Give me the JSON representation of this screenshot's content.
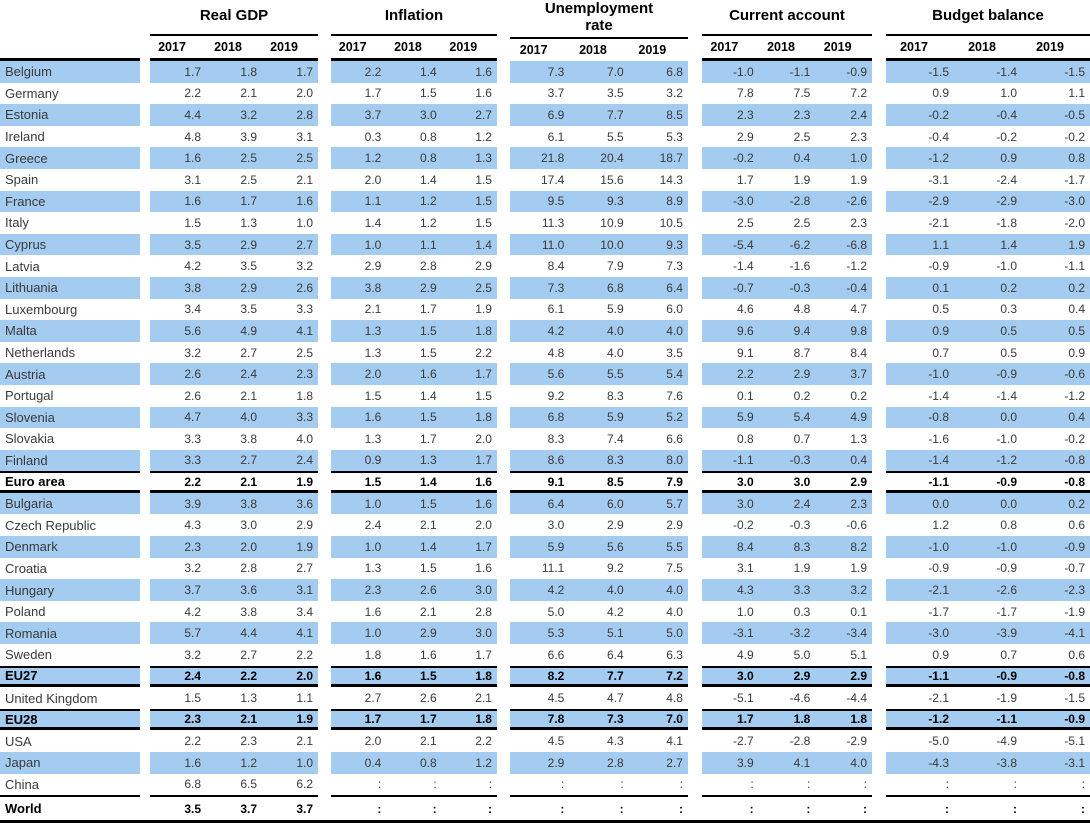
{
  "header": {
    "groups": [
      {
        "label": "Real GDP"
      },
      {
        "label": "Inflation"
      },
      {
        "label": "Unemployment rate"
      },
      {
        "label": "Current account"
      },
      {
        "label": "Budget balance"
      }
    ],
    "years": [
      "2017",
      "2018",
      "2019"
    ]
  },
  "colors": {
    "row_highlight": "#a4cbf0",
    "rule": "#000000"
  },
  "missing_value_symbol": ":",
  "rows": [
    {
      "name": "Belgium",
      "hl": true,
      "agg": false,
      "v": [
        [
          "1.7",
          "1.8",
          "1.7"
        ],
        [
          "2.2",
          "1.4",
          "1.6"
        ],
        [
          "7.3",
          "7.0",
          "6.8"
        ],
        [
          "-1.0",
          "-1.1",
          "-0.9"
        ],
        [
          "-1.5",
          "-1.4",
          "-1.5"
        ]
      ]
    },
    {
      "name": "Germany",
      "hl": false,
      "agg": false,
      "v": [
        [
          "2.2",
          "2.1",
          "2.0"
        ],
        [
          "1.7",
          "1.5",
          "1.6"
        ],
        [
          "3.7",
          "3.5",
          "3.2"
        ],
        [
          "7.8",
          "7.5",
          "7.2"
        ],
        [
          "0.9",
          "1.0",
          "1.1"
        ]
      ]
    },
    {
      "name": "Estonia",
      "hl": true,
      "agg": false,
      "v": [
        [
          "4.4",
          "3.2",
          "2.8"
        ],
        [
          "3.7",
          "3.0",
          "2.7"
        ],
        [
          "6.9",
          "7.7",
          "8.5"
        ],
        [
          "2.3",
          "2.3",
          "2.4"
        ],
        [
          "-0.2",
          "-0.4",
          "-0.5"
        ]
      ]
    },
    {
      "name": "Ireland",
      "hl": false,
      "agg": false,
      "v": [
        [
          "4.8",
          "3.9",
          "3.1"
        ],
        [
          "0.3",
          "0.8",
          "1.2"
        ],
        [
          "6.1",
          "5.5",
          "5.3"
        ],
        [
          "2.9",
          "2.5",
          "2.3"
        ],
        [
          "-0.4",
          "-0.2",
          "-0.2"
        ]
      ]
    },
    {
      "name": "Greece",
      "hl": true,
      "agg": false,
      "v": [
        [
          "1.6",
          "2.5",
          "2.5"
        ],
        [
          "1.2",
          "0.8",
          "1.3"
        ],
        [
          "21.8",
          "20.4",
          "18.7"
        ],
        [
          "-0.2",
          "0.4",
          "1.0"
        ],
        [
          "-1.2",
          "0.9",
          "0.8"
        ]
      ]
    },
    {
      "name": "Spain",
      "hl": false,
      "agg": false,
      "v": [
        [
          "3.1",
          "2.5",
          "2.1"
        ],
        [
          "2.0",
          "1.4",
          "1.5"
        ],
        [
          "17.4",
          "15.6",
          "14.3"
        ],
        [
          "1.7",
          "1.9",
          "1.9"
        ],
        [
          "-3.1",
          "-2.4",
          "-1.7"
        ]
      ]
    },
    {
      "name": "France",
      "hl": true,
      "agg": false,
      "v": [
        [
          "1.6",
          "1.7",
          "1.6"
        ],
        [
          "1.1",
          "1.2",
          "1.5"
        ],
        [
          "9.5",
          "9.3",
          "8.9"
        ],
        [
          "-3.0",
          "-2.8",
          "-2.6"
        ],
        [
          "-2.9",
          "-2.9",
          "-3.0"
        ]
      ]
    },
    {
      "name": "Italy",
      "hl": false,
      "agg": false,
      "v": [
        [
          "1.5",
          "1.3",
          "1.0"
        ],
        [
          "1.4",
          "1.2",
          "1.5"
        ],
        [
          "11.3",
          "10.9",
          "10.5"
        ],
        [
          "2.5",
          "2.5",
          "2.3"
        ],
        [
          "-2.1",
          "-1.8",
          "-2.0"
        ]
      ]
    },
    {
      "name": "Cyprus",
      "hl": true,
      "agg": false,
      "v": [
        [
          "3.5",
          "2.9",
          "2.7"
        ],
        [
          "1.0",
          "1.1",
          "1.4"
        ],
        [
          "11.0",
          "10.0",
          "9.3"
        ],
        [
          "-5.4",
          "-6.2",
          "-6.8"
        ],
        [
          "1.1",
          "1.4",
          "1.9"
        ]
      ]
    },
    {
      "name": "Latvia",
      "hl": false,
      "agg": false,
      "v": [
        [
          "4.2",
          "3.5",
          "3.2"
        ],
        [
          "2.9",
          "2.8",
          "2.9"
        ],
        [
          "8.4",
          "7.9",
          "7.3"
        ],
        [
          "-1.4",
          "-1.6",
          "-1.2"
        ],
        [
          "-0.9",
          "-1.0",
          "-1.1"
        ]
      ]
    },
    {
      "name": "Lithuania",
      "hl": true,
      "agg": false,
      "v": [
        [
          "3.8",
          "2.9",
          "2.6"
        ],
        [
          "3.8",
          "2.9",
          "2.5"
        ],
        [
          "7.3",
          "6.8",
          "6.4"
        ],
        [
          "-0.7",
          "-0.3",
          "-0.4"
        ],
        [
          "0.1",
          "0.2",
          "0.2"
        ]
      ]
    },
    {
      "name": "Luxembourg",
      "hl": false,
      "agg": false,
      "v": [
        [
          "3.4",
          "3.5",
          "3.3"
        ],
        [
          "2.1",
          "1.7",
          "1.9"
        ],
        [
          "6.1",
          "5.9",
          "6.0"
        ],
        [
          "4.6",
          "4.8",
          "4.7"
        ],
        [
          "0.5",
          "0.3",
          "0.4"
        ]
      ]
    },
    {
      "name": "Malta",
      "hl": true,
      "agg": false,
      "v": [
        [
          "5.6",
          "4.9",
          "4.1"
        ],
        [
          "1.3",
          "1.5",
          "1.8"
        ],
        [
          "4.2",
          "4.0",
          "4.0"
        ],
        [
          "9.6",
          "9.4",
          "9.8"
        ],
        [
          "0.9",
          "0.5",
          "0.5"
        ]
      ]
    },
    {
      "name": "Netherlands",
      "hl": false,
      "agg": false,
      "v": [
        [
          "3.2",
          "2.7",
          "2.5"
        ],
        [
          "1.3",
          "1.5",
          "2.2"
        ],
        [
          "4.8",
          "4.0",
          "3.5"
        ],
        [
          "9.1",
          "8.7",
          "8.4"
        ],
        [
          "0.7",
          "0.5",
          "0.9"
        ]
      ]
    },
    {
      "name": "Austria",
      "hl": true,
      "agg": false,
      "v": [
        [
          "2.6",
          "2.4",
          "2.3"
        ],
        [
          "2.0",
          "1.6",
          "1.7"
        ],
        [
          "5.6",
          "5.5",
          "5.4"
        ],
        [
          "2.2",
          "2.9",
          "3.7"
        ],
        [
          "-1.0",
          "-0.9",
          "-0.6"
        ]
      ]
    },
    {
      "name": "Portugal",
      "hl": false,
      "agg": false,
      "v": [
        [
          "2.6",
          "2.1",
          "1.8"
        ],
        [
          "1.5",
          "1.4",
          "1.5"
        ],
        [
          "9.2",
          "8.3",
          "7.6"
        ],
        [
          "0.1",
          "0.2",
          "0.2"
        ],
        [
          "-1.4",
          "-1.4",
          "-1.2"
        ]
      ]
    },
    {
      "name": "Slovenia",
      "hl": true,
      "agg": false,
      "v": [
        [
          "4.7",
          "4.0",
          "3.3"
        ],
        [
          "1.6",
          "1.5",
          "1.8"
        ],
        [
          "6.8",
          "5.9",
          "5.2"
        ],
        [
          "5.9",
          "5.4",
          "4.9"
        ],
        [
          "-0.8",
          "0.0",
          "0.4"
        ]
      ]
    },
    {
      "name": "Slovakia",
      "hl": false,
      "agg": false,
      "v": [
        [
          "3.3",
          "3.8",
          "4.0"
        ],
        [
          "1.3",
          "1.7",
          "2.0"
        ],
        [
          "8.3",
          "7.4",
          "6.6"
        ],
        [
          "0.8",
          "0.7",
          "1.3"
        ],
        [
          "-1.6",
          "-1.0",
          "-0.2"
        ]
      ]
    },
    {
      "name": "Finland",
      "hl": true,
      "agg": false,
      "v": [
        [
          "3.3",
          "2.7",
          "2.4"
        ],
        [
          "0.9",
          "1.3",
          "1.7"
        ],
        [
          "8.6",
          "8.3",
          "8.0"
        ],
        [
          "-1.1",
          "-0.3",
          "0.4"
        ],
        [
          "-1.4",
          "-1.2",
          "-0.8"
        ]
      ]
    },
    {
      "name": "Euro area",
      "hl": false,
      "agg": true,
      "v": [
        [
          "2.2",
          "2.1",
          "1.9"
        ],
        [
          "1.5",
          "1.4",
          "1.6"
        ],
        [
          "9.1",
          "8.5",
          "7.9"
        ],
        [
          "3.0",
          "3.0",
          "2.9"
        ],
        [
          "-1.1",
          "-0.9",
          "-0.8"
        ]
      ]
    },
    {
      "name": "Bulgaria",
      "hl": true,
      "agg": false,
      "v": [
        [
          "3.9",
          "3.8",
          "3.6"
        ],
        [
          "1.0",
          "1.5",
          "1.6"
        ],
        [
          "6.4",
          "6.0",
          "5.7"
        ],
        [
          "3.0",
          "2.4",
          "2.3"
        ],
        [
          "0.0",
          "0.0",
          "0.2"
        ]
      ]
    },
    {
      "name": "Czech Republic",
      "hl": false,
      "agg": false,
      "v": [
        [
          "4.3",
          "3.0",
          "2.9"
        ],
        [
          "2.4",
          "2.1",
          "2.0"
        ],
        [
          "3.0",
          "2.9",
          "2.9"
        ],
        [
          "-0.2",
          "-0.3",
          "-0.6"
        ],
        [
          "1.2",
          "0.8",
          "0.6"
        ]
      ]
    },
    {
      "name": "Denmark",
      "hl": true,
      "agg": false,
      "v": [
        [
          "2.3",
          "2.0",
          "1.9"
        ],
        [
          "1.0",
          "1.4",
          "1.7"
        ],
        [
          "5.9",
          "5.6",
          "5.5"
        ],
        [
          "8.4",
          "8.3",
          "8.2"
        ],
        [
          "-1.0",
          "-1.0",
          "-0.9"
        ]
      ]
    },
    {
      "name": "Croatia",
      "hl": false,
      "agg": false,
      "v": [
        [
          "3.2",
          "2.8",
          "2.7"
        ],
        [
          "1.3",
          "1.5",
          "1.6"
        ],
        [
          "11.1",
          "9.2",
          "7.5"
        ],
        [
          "3.1",
          "1.9",
          "1.9"
        ],
        [
          "-0.9",
          "-0.9",
          "-0.7"
        ]
      ]
    },
    {
      "name": "Hungary",
      "hl": true,
      "agg": false,
      "v": [
        [
          "3.7",
          "3.6",
          "3.1"
        ],
        [
          "2.3",
          "2.6",
          "3.0"
        ],
        [
          "4.2",
          "4.0",
          "4.0"
        ],
        [
          "4.3",
          "3.3",
          "3.2"
        ],
        [
          "-2.1",
          "-2.6",
          "-2.3"
        ]
      ]
    },
    {
      "name": "Poland",
      "hl": false,
      "agg": false,
      "v": [
        [
          "4.2",
          "3.8",
          "3.4"
        ],
        [
          "1.6",
          "2.1",
          "2.8"
        ],
        [
          "5.0",
          "4.2",
          "4.0"
        ],
        [
          "1.0",
          "0.3",
          "0.1"
        ],
        [
          "-1.7",
          "-1.7",
          "-1.9"
        ]
      ]
    },
    {
      "name": "Romania",
      "hl": true,
      "agg": false,
      "v": [
        [
          "5.7",
          "4.4",
          "4.1"
        ],
        [
          "1.0",
          "2.9",
          "3.0"
        ],
        [
          "5.3",
          "5.1",
          "5.0"
        ],
        [
          "-3.1",
          "-3.2",
          "-3.4"
        ],
        [
          "-3.0",
          "-3.9",
          "-4.1"
        ]
      ]
    },
    {
      "name": "Sweden",
      "hl": false,
      "agg": false,
      "v": [
        [
          "3.2",
          "2.7",
          "2.2"
        ],
        [
          "1.8",
          "1.6",
          "1.7"
        ],
        [
          "6.6",
          "6.4",
          "6.3"
        ],
        [
          "4.9",
          "5.0",
          "5.1"
        ],
        [
          "0.9",
          "0.7",
          "0.6"
        ]
      ]
    },
    {
      "name": "EU27",
      "hl": true,
      "agg": true,
      "v": [
        [
          "2.4",
          "2.2",
          "2.0"
        ],
        [
          "1.6",
          "1.5",
          "1.8"
        ],
        [
          "8.2",
          "7.7",
          "7.2"
        ],
        [
          "3.0",
          "2.9",
          "2.9"
        ],
        [
          "-1.1",
          "-0.9",
          "-0.8"
        ]
      ]
    },
    {
      "name": "United Kingdom",
      "hl": false,
      "agg": false,
      "v": [
        [
          "1.5",
          "1.3",
          "1.1"
        ],
        [
          "2.7",
          "2.6",
          "2.1"
        ],
        [
          "4.5",
          "4.7",
          "4.8"
        ],
        [
          "-5.1",
          "-4.6",
          "-4.4"
        ],
        [
          "-2.1",
          "-1.9",
          "-1.5"
        ]
      ]
    },
    {
      "name": "EU28",
      "hl": true,
      "agg": true,
      "v": [
        [
          "2.3",
          "2.1",
          "1.9"
        ],
        [
          "1.7",
          "1.7",
          "1.8"
        ],
        [
          "7.8",
          "7.3",
          "7.0"
        ],
        [
          "1.7",
          "1.8",
          "1.8"
        ],
        [
          "-1.2",
          "-1.1",
          "-0.9"
        ]
      ]
    },
    {
      "name": "USA",
      "hl": false,
      "agg": false,
      "v": [
        [
          "2.2",
          "2.3",
          "2.1"
        ],
        [
          "2.0",
          "2.1",
          "2.2"
        ],
        [
          "4.5",
          "4.3",
          "4.1"
        ],
        [
          "-2.7",
          "-2.8",
          "-2.9"
        ],
        [
          "-5.0",
          "-4.9",
          "-5.1"
        ]
      ]
    },
    {
      "name": "Japan",
      "hl": true,
      "agg": false,
      "v": [
        [
          "1.6",
          "1.2",
          "1.0"
        ],
        [
          "0.4",
          "0.8",
          "1.2"
        ],
        [
          "2.9",
          "2.8",
          "2.7"
        ],
        [
          "3.9",
          "4.1",
          "4.0"
        ],
        [
          "-4.3",
          "-3.8",
          "-3.1"
        ]
      ]
    },
    {
      "name": "China",
      "hl": false,
      "agg": false,
      "v": [
        [
          "6.8",
          "6.5",
          "6.2"
        ],
        [
          ":",
          ":",
          ":"
        ],
        [
          ":",
          ":",
          ":"
        ],
        [
          ":",
          ":",
          ":"
        ],
        [
          ":",
          ":",
          ":"
        ]
      ]
    },
    {
      "name": "World",
      "hl": false,
      "agg": true,
      "last": true,
      "v": [
        [
          "3.5",
          "3.7",
          "3.7"
        ],
        [
          ":",
          ":",
          ":"
        ],
        [
          ":",
          ":",
          ":"
        ],
        [
          ":",
          ":",
          ":"
        ],
        [
          ":",
          ":",
          ":"
        ]
      ]
    }
  ]
}
